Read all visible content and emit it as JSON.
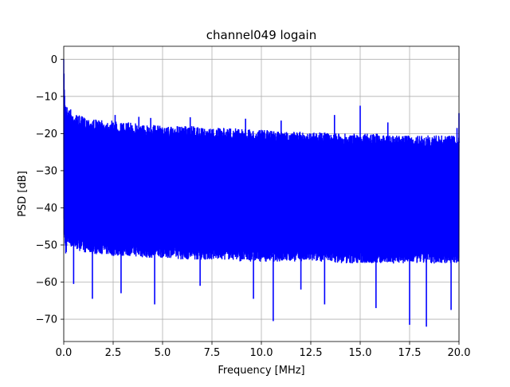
{
  "chart_data": {
    "type": "line",
    "title": "channel049 logain",
    "xlabel": "Frequency [MHz]",
    "ylabel": "PSD [dB]",
    "xlim": [
      0,
      20
    ],
    "ylim": [
      -76,
      3.5
    ],
    "xticks": [
      0.0,
      2.5,
      5.0,
      7.5,
      10.0,
      12.5,
      15.0,
      17.5,
      20.0
    ],
    "xtick_labels": [
      "0.0",
      "2.5",
      "5.0",
      "7.5",
      "10.0",
      "12.5",
      "15.0",
      "17.5",
      "20.0"
    ],
    "yticks": [
      0,
      -10,
      -20,
      -30,
      -40,
      -50,
      -60,
      -70
    ],
    "ytick_labels": [
      "0",
      "−10",
      "−20",
      "−30",
      "−40",
      "−50",
      "−60",
      "−70"
    ],
    "grid": true,
    "series": [
      {
        "color": "#0000ff",
        "x": [
          0.0,
          0.05,
          0.1,
          0.2,
          0.5,
          1.0,
          1.5,
          2.0,
          2.5,
          3.0,
          3.5,
          4.0,
          4.5,
          5.0,
          5.5,
          6.0,
          6.5,
          7.0,
          7.5,
          8.0,
          8.5,
          9.0,
          9.5,
          10.0,
          10.5,
          11.0,
          11.5,
          12.0,
          12.5,
          13.0,
          13.5,
          14.0,
          14.5,
          15.0,
          15.5,
          16.0,
          16.5,
          17.0,
          17.5,
          18.0,
          18.5,
          19.0,
          19.5,
          20.0
        ],
        "upper": [
          0.0,
          -9.5,
          -11.5,
          -13.0,
          -14.5,
          -15.5,
          -16.0,
          -16.5,
          -16.5,
          -17.0,
          -17.0,
          -17.5,
          -17.5,
          -18.0,
          -18.0,
          -18.0,
          -18.0,
          -18.5,
          -18.5,
          -18.5,
          -18.5,
          -18.5,
          -19.0,
          -19.0,
          -19.0,
          -19.5,
          -19.5,
          -19.5,
          -19.5,
          -19.5,
          -20.0,
          -20.0,
          -20.0,
          -20.0,
          -20.0,
          -20.0,
          -20.5,
          -20.5,
          -20.5,
          -20.5,
          -20.5,
          -20.5,
          -20.5,
          -20.5
        ],
        "lower": [
          -45.0,
          -50.0,
          -53.0,
          -50.0,
          -51.0,
          -52.0,
          -52.5,
          -52.5,
          -53.0,
          -53.0,
          -53.0,
          -53.5,
          -53.5,
          -53.5,
          -53.5,
          -54.0,
          -54.0,
          -54.0,
          -54.0,
          -54.0,
          -54.0,
          -54.5,
          -54.5,
          -54.5,
          -54.5,
          -54.5,
          -54.5,
          -54.5,
          -54.5,
          -54.5,
          -54.5,
          -55.0,
          -55.0,
          -55.0,
          -55.0,
          -55.0,
          -55.0,
          -55.0,
          -55.0,
          -55.0,
          -55.0,
          -55.0,
          -55.0,
          -55.0
        ],
        "peaks": [
          [
            0.35,
            -13.5
          ],
          [
            2.6,
            -15.0
          ],
          [
            3.8,
            -15.5
          ],
          [
            4.4,
            -15.8
          ],
          [
            6.4,
            -15.6
          ],
          [
            9.2,
            -16.0
          ],
          [
            11.0,
            -16.5
          ],
          [
            13.7,
            -15.0
          ],
          [
            15.0,
            -12.5
          ],
          [
            16.4,
            -17.0
          ],
          [
            19.9,
            -18.5
          ],
          [
            20.0,
            -14.5
          ]
        ],
        "dips": [
          [
            0.5,
            -60.5
          ],
          [
            1.45,
            -64.5
          ],
          [
            2.9,
            -63.0
          ],
          [
            4.6,
            -66.0
          ],
          [
            6.9,
            -61.0
          ],
          [
            9.6,
            -64.5
          ],
          [
            10.6,
            -70.5
          ],
          [
            12.0,
            -62.0
          ],
          [
            13.2,
            -66.0
          ],
          [
            15.8,
            -67.0
          ],
          [
            17.5,
            -71.5
          ],
          [
            18.35,
            -72.0
          ],
          [
            19.6,
            -67.5
          ]
        ]
      }
    ]
  }
}
